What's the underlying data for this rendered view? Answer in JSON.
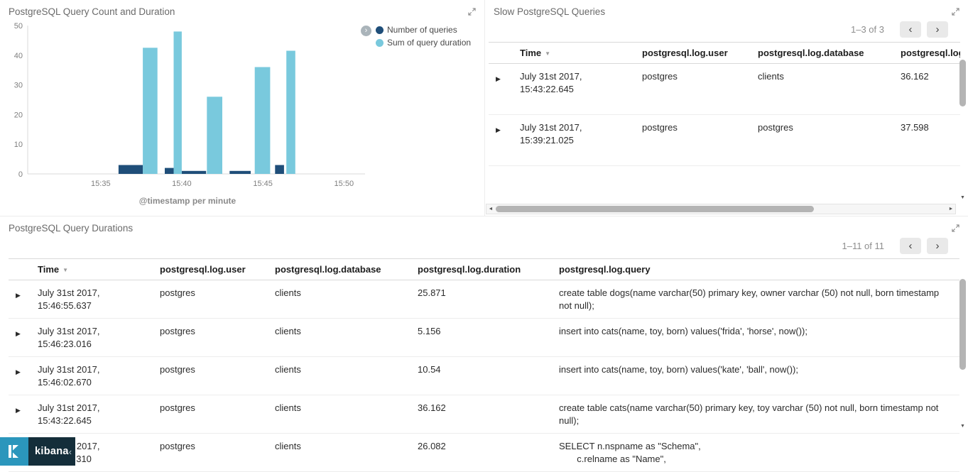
{
  "icons": {
    "chevron_left": "‹",
    "chevron_right": "›",
    "caret_right": "▶",
    "sort_desc": "▼",
    "scroll_down": "▼",
    "scroll_left": "◄",
    "scroll_right": "►",
    "legend_toggle": "›"
  },
  "kibana_bar": {
    "logo_label": "kibana",
    "collapse_icon": "‹"
  },
  "chart_panel": {
    "title": "PostgreSQL Query Count and Duration"
  },
  "chart_data": {
    "type": "bar",
    "title": "PostgreSQL Query Count and Duration",
    "xlabel": "@timestamp per minute",
    "ylabel": "",
    "ylim": [
      0,
      50
    ],
    "y_ticks": [
      0,
      10,
      20,
      30,
      40,
      50
    ],
    "x_tick_labels": [
      "15:35",
      "15:40",
      "15:45",
      "15:50"
    ],
    "x_tick_minutes": [
      0,
      5,
      10,
      15
    ],
    "x_domain_minutes": [
      -4.5,
      16.3
    ],
    "x_base_time": "15:35",
    "grid": false,
    "legend_position": "right",
    "series": [
      {
        "name": "Number of queries",
        "color": "#1f4e79",
        "bars": [
          {
            "start_min": 1.1,
            "width_min": 1.5,
            "value": 3
          },
          {
            "start_min": 3.95,
            "width_min": 0.55,
            "value": 2
          },
          {
            "start_min": 5.0,
            "width_min": 1.5,
            "value": 1
          },
          {
            "start_min": 7.95,
            "width_min": 1.3,
            "value": 1
          },
          {
            "start_min": 10.75,
            "width_min": 0.55,
            "value": 3
          }
        ]
      },
      {
        "name": "Sum of query duration",
        "color": "#79c9dd",
        "bars": [
          {
            "start_min": 2.6,
            "width_min": 0.9,
            "value": 42.5
          },
          {
            "start_min": 4.5,
            "width_min": 0.5,
            "value": 48
          },
          {
            "start_min": 6.55,
            "width_min": 0.95,
            "value": 26
          },
          {
            "start_min": 9.5,
            "width_min": 0.95,
            "value": 36
          },
          {
            "start_min": 11.45,
            "width_min": 0.55,
            "value": 41.5
          }
        ]
      }
    ]
  },
  "slow_queries_panel": {
    "title": "Slow PostgreSQL Queries",
    "pagination": "1–3 of 3",
    "sorted_column_index": 0,
    "columns": [
      "Time",
      "postgresql.log.user",
      "postgresql.log.database",
      "postgresql.log.duration"
    ],
    "rows": [
      [
        "July 31st 2017, 15:43:22.645",
        "postgres",
        "clients",
        "36.162"
      ],
      [
        "July 31st 2017, 15:39:21.025",
        "postgres",
        "postgres",
        "37.598"
      ]
    ]
  },
  "durations_panel": {
    "title": "PostgreSQL Query Durations",
    "pagination": "1–11 of 11",
    "sorted_column_index": 0,
    "columns": [
      "Time",
      "postgresql.log.user",
      "postgresql.log.database",
      "postgresql.log.duration",
      "postgresql.log.query"
    ],
    "rows": [
      [
        "July 31st 2017, 15:46:55.637",
        "postgres",
        "clients",
        "25.871",
        "create table dogs(name varchar(50) primary key, owner varchar (50) not null, born timestamp not null);"
      ],
      [
        "July 31st 2017, 15:46:23.016",
        "postgres",
        "clients",
        "5.156",
        "insert into cats(name, toy, born) values('frida', 'horse', now());"
      ],
      [
        "July 31st 2017, 15:46:02.670",
        "postgres",
        "clients",
        "10.54",
        "insert into cats(name, toy, born) values('kate', 'ball', now());"
      ],
      [
        "July 31st 2017, 15:43:22.645",
        "postgres",
        "clients",
        "36.162",
        "create table cats(name varchar(50) primary key, toy varchar (50) not null, born timestamp not null);"
      ],
      [
        "July 31st 2017, 15:40:54.310",
        "postgres",
        "clients",
        "26.082",
        "SELECT n.nspname as \"Schema\",\n       c.relname as \"Name\","
      ]
    ]
  },
  "colors": {
    "queries_series": "#1f4e79",
    "duration_series": "#79c9dd",
    "kibana_logo_bg": "#2b96bc",
    "kibana_bar_bg": "#142e3a"
  }
}
